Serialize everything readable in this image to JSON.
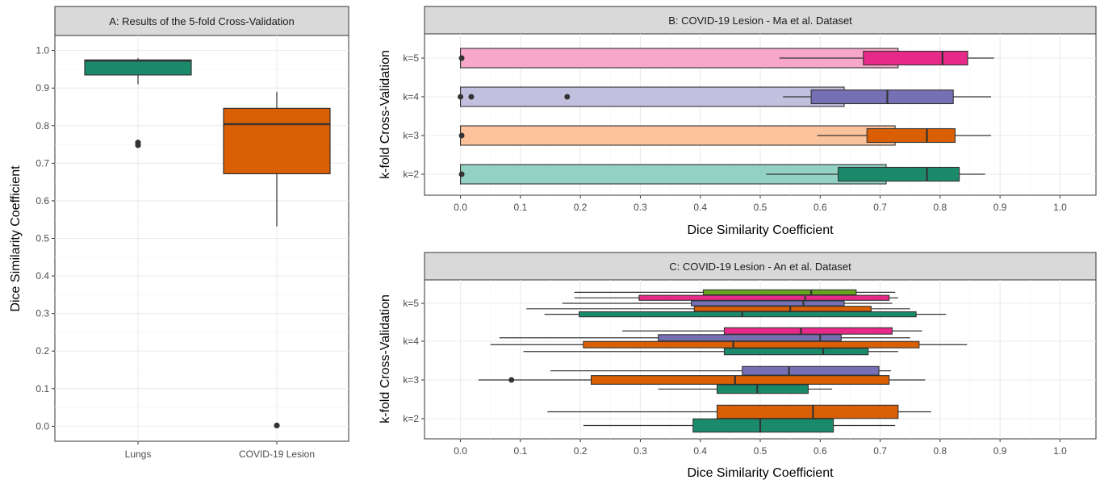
{
  "chart_data": [
    {
      "type": "boxplot",
      "panel": "A",
      "title": "A: Results of the 5-fold Cross-Validation",
      "xlabel": "",
      "ylabel": "Dice Similarity Coefficient",
      "ylim": [
        -0.04,
        1.04
      ],
      "yticks": [
        0.0,
        0.1,
        0.2,
        0.3,
        0.4,
        0.5,
        0.6,
        0.7,
        0.8,
        0.9,
        1.0
      ],
      "ytick_labels": [
        "0.0",
        "0.1",
        "0.2",
        "0.3",
        "0.4",
        "0.5",
        "0.6",
        "0.7",
        "0.8",
        "0.9",
        "1.0"
      ],
      "categories": [
        "Lungs",
        "COVID-19 Lesion"
      ],
      "boxes": [
        {
          "category": "Lungs",
          "whisker_low": 0.91,
          "q1": 0.935,
          "median": 0.973,
          "q3": 0.975,
          "whisker_high": 0.98,
          "outliers": [
            0.755,
            0.748
          ],
          "color": "#1b8a6b"
        },
        {
          "category": "COVID-19 Lesion",
          "whisker_low": 0.532,
          "q1": 0.672,
          "median": 0.804,
          "q3": 0.846,
          "whisker_high": 0.89,
          "outliers": [
            0.002
          ],
          "color": "#d95f02"
        }
      ],
      "grid": true
    },
    {
      "type": "bar_boxplot",
      "panel": "B",
      "title": "B: COVID-19 Lesion - Ma et al. Dataset",
      "xlabel": "Dice Similarity Coefficient",
      "ylabel": "k-fold Cross-Validation",
      "xlim": [
        -0.06,
        1.06
      ],
      "xticks": [
        0.0,
        0.1,
        0.2,
        0.3,
        0.4,
        0.5,
        0.6,
        0.7,
        0.8,
        0.9,
        1.0
      ],
      "xtick_labels": [
        "0.0",
        "0.1",
        "0.2",
        "0.3",
        "0.4",
        "0.5",
        "0.6",
        "0.7",
        "0.8",
        "0.9",
        "1.0"
      ],
      "categories": [
        "k=5",
        "k=4",
        "k=3",
        "k=2"
      ],
      "bars": [
        {
          "category": "k=5",
          "value": 0.73,
          "color": "#f7a8c8"
        },
        {
          "category": "k=4",
          "value": 0.64,
          "color": "#c3c0df"
        },
        {
          "category": "k=3",
          "value": 0.725,
          "color": "#fbc39b"
        },
        {
          "category": "k=2",
          "value": 0.71,
          "color": "#93d1c2"
        }
      ],
      "boxes": [
        {
          "category": "k=5",
          "whisker_low": 0.532,
          "q1": 0.672,
          "median": 0.804,
          "q3": 0.846,
          "whisker_high": 0.89,
          "outliers": [
            0.002
          ],
          "color": "#e7298a"
        },
        {
          "category": "k=4",
          "whisker_low": 0.538,
          "q1": 0.585,
          "median": 0.712,
          "q3": 0.822,
          "whisker_high": 0.885,
          "outliers": [
            0.0,
            0.018,
            0.178
          ],
          "color": "#7570b3"
        },
        {
          "category": "k=3",
          "whisker_low": 0.595,
          "q1": 0.678,
          "median": 0.778,
          "q3": 0.825,
          "whisker_high": 0.885,
          "outliers": [
            0.002
          ],
          "color": "#d95f02"
        },
        {
          "category": "k=2",
          "whisker_low": 0.51,
          "q1": 0.63,
          "median": 0.778,
          "q3": 0.832,
          "whisker_high": 0.875,
          "outliers": [
            0.002
          ],
          "color": "#1b8a6b"
        }
      ],
      "grid": true
    },
    {
      "type": "boxplot",
      "panel": "C",
      "title": "C: COVID-19 Lesion - An et al. Dataset",
      "xlabel": "Dice Similarity Coefficient",
      "ylabel": "k-fold Cross-Validation",
      "xlim": [
        -0.06,
        1.06
      ],
      "xticks": [
        0.0,
        0.1,
        0.2,
        0.3,
        0.4,
        0.5,
        0.6,
        0.7,
        0.8,
        0.9,
        1.0
      ],
      "xtick_labels": [
        "0.0",
        "0.1",
        "0.2",
        "0.3",
        "0.4",
        "0.5",
        "0.6",
        "0.7",
        "0.8",
        "0.9",
        "1.0"
      ],
      "categories": [
        "k=5",
        "k=4",
        "k=3",
        "k=2"
      ],
      "boxes": [
        {
          "category": "k=5",
          "fold": 5,
          "whisker_low": 0.19,
          "q1": 0.405,
          "median": 0.585,
          "q3": 0.66,
          "whisker_high": 0.725,
          "color": "#66a61e"
        },
        {
          "category": "k=5",
          "fold": 4,
          "whisker_low": 0.19,
          "q1": 0.298,
          "median": 0.575,
          "q3": 0.715,
          "whisker_high": 0.73,
          "color": "#e7298a"
        },
        {
          "category": "k=5",
          "fold": 3,
          "whisker_low": 0.17,
          "q1": 0.385,
          "median": 0.572,
          "q3": 0.64,
          "whisker_high": 0.72,
          "color": "#7570b3"
        },
        {
          "category": "k=5",
          "fold": 2,
          "whisker_low": 0.11,
          "q1": 0.39,
          "median": 0.55,
          "q3": 0.685,
          "whisker_high": 0.75,
          "color": "#d95f02"
        },
        {
          "category": "k=5",
          "fold": 1,
          "whisker_low": 0.14,
          "q1": 0.198,
          "median": 0.47,
          "q3": 0.76,
          "whisker_high": 0.81,
          "color": "#1b8a6b"
        },
        {
          "category": "k=4",
          "fold": 4,
          "whisker_low": 0.27,
          "q1": 0.44,
          "median": 0.568,
          "q3": 0.72,
          "whisker_high": 0.77,
          "color": "#e7298a"
        },
        {
          "category": "k=4",
          "fold": 3,
          "whisker_low": 0.065,
          "q1": 0.33,
          "median": 0.6,
          "q3": 0.635,
          "whisker_high": 0.75,
          "color": "#7570b3"
        },
        {
          "category": "k=4",
          "fold": 2,
          "whisker_low": 0.05,
          "q1": 0.205,
          "median": 0.455,
          "q3": 0.765,
          "whisker_high": 0.845,
          "color": "#d95f02"
        },
        {
          "category": "k=4",
          "fold": 1,
          "whisker_low": 0.105,
          "q1": 0.44,
          "median": 0.605,
          "q3": 0.68,
          "whisker_high": 0.73,
          "color": "#1b8a6b"
        },
        {
          "category": "k=3",
          "fold": 3,
          "whisker_low": 0.15,
          "q1": 0.47,
          "median": 0.548,
          "q3": 0.698,
          "whisker_high": 0.718,
          "color": "#7570b3"
        },
        {
          "category": "k=3",
          "fold": 2,
          "whisker_low": 0.03,
          "q1": 0.218,
          "median": 0.458,
          "q3": 0.715,
          "whisker_high": 0.775,
          "outliers": [
            0.085
          ],
          "color": "#d95f02"
        },
        {
          "category": "k=3",
          "fold": 1,
          "whisker_low": 0.33,
          "q1": 0.428,
          "median": 0.495,
          "q3": 0.58,
          "whisker_high": 0.62,
          "color": "#1b8a6b"
        },
        {
          "category": "k=2",
          "fold": 2,
          "whisker_low": 0.145,
          "q1": 0.428,
          "median": 0.588,
          "q3": 0.73,
          "whisker_high": 0.785,
          "color": "#d95f02"
        },
        {
          "category": "k=2",
          "fold": 1,
          "whisker_low": 0.205,
          "q1": 0.388,
          "median": 0.5,
          "q3": 0.622,
          "whisker_high": 0.725,
          "color": "#1b8a6b"
        }
      ],
      "grid": true
    }
  ]
}
